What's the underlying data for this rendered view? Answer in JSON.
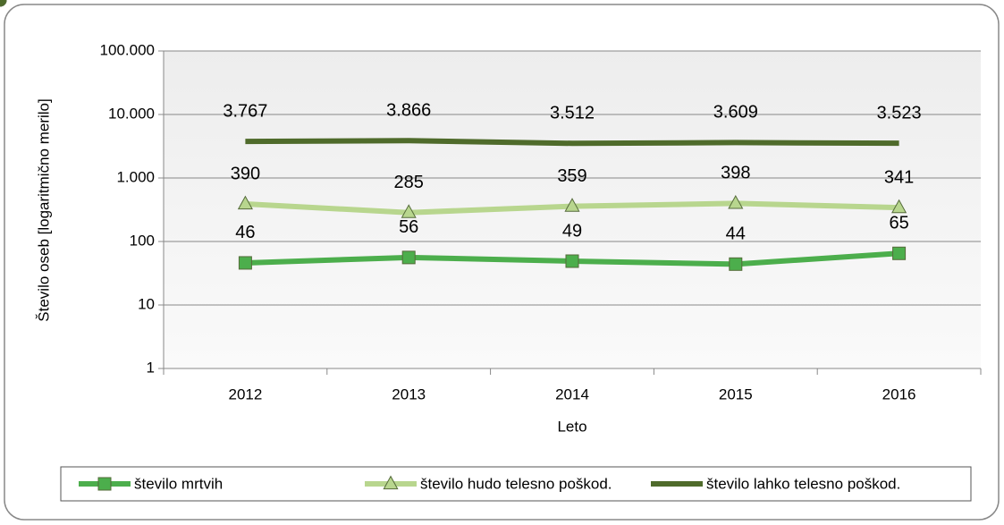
{
  "chart_data": {
    "type": "line",
    "x_label": "Leto",
    "y_label": "Število oseb [logaritmično merilo]",
    "categories": [
      "2012",
      "2013",
      "2014",
      "2015",
      "2016"
    ],
    "log_scale": true,
    "grid": true,
    "legend": "bottom",
    "ylim": [
      1,
      100000
    ],
    "yticks": [
      1,
      10,
      100,
      {
        "value": 1000,
        "label": "1.000"
      },
      {
        "value": 10000,
        "label": "10.000"
      },
      {
        "value": 100000,
        "label": "100.000"
      }
    ],
    "series": [
      {
        "name": "število mrtvih",
        "color": "#4cae4c",
        "marker": "square",
        "values": [
          46,
          56,
          49,
          44,
          65
        ]
      },
      {
        "name": "število hudo telesno poškod.",
        "color": "#b8d68e",
        "marker": "triangle",
        "values": [
          390,
          285,
          359,
          398,
          341
        ]
      },
      {
        "name": "število lahko telesno poškod.",
        "color": "#4f6b2b",
        "marker": "circle",
        "values": [
          3767,
          3866,
          3512,
          3609,
          3523
        ],
        "value_labels": [
          "3.767",
          "3.866",
          "3.512",
          "3.609",
          "3.523"
        ]
      }
    ]
  }
}
